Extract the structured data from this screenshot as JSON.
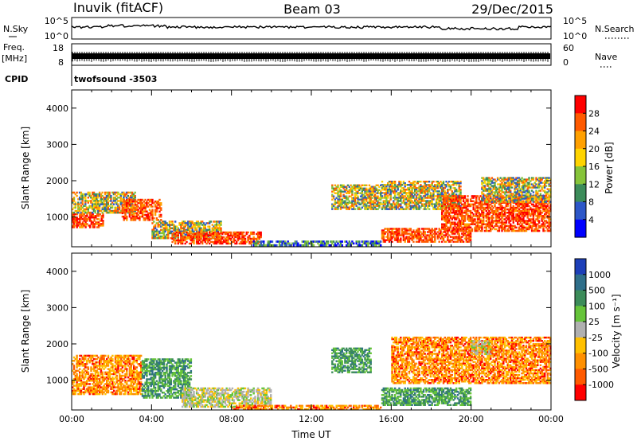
{
  "header": {
    "station": "Inuvik (fitACF)",
    "beam": "Beam 03",
    "date": "29/Dec/2015"
  },
  "top_panels": {
    "nsky_label": "N.Sky",
    "nsky_ticks": [
      "10^5",
      "10^0"
    ],
    "nsearch_label": "N.Search",
    "nsearch_ticks": [
      "10^5",
      "10^0"
    ],
    "freq_label": "Freq.",
    "freq_unit": "[MHz]",
    "freq_ticks": [
      "18",
      "8"
    ],
    "nave_label": "Nave",
    "nave_ticks": [
      "60",
      "0"
    ],
    "cpid_label": "CPID",
    "cpid_value": "twofsound  -3503"
  },
  "chart_data": [
    {
      "type": "heatmap",
      "name": "power",
      "ylabel": "Slant Range [km]",
      "yticks": [
        "1000",
        "2000",
        "3000",
        "4000"
      ],
      "ylim": [
        180,
        4500
      ],
      "xlim": [
        0,
        24
      ],
      "colorbar": {
        "label": "Power [dB]",
        "ticks": [
          "28",
          "24",
          "20",
          "16",
          "12",
          "8",
          "4"
        ],
        "colors": [
          "#ff0000",
          "#ff5a00",
          "#ffa000",
          "#ffd400",
          "#86c43a",
          "#3c8c5a",
          "#2d57c8",
          "#0000ff"
        ]
      },
      "echo_regions": [
        {
          "t0": 0.0,
          "t1": 1.6,
          "r0": 700,
          "r1": 1100,
          "level": "strong"
        },
        {
          "t0": 0.0,
          "t1": 3.2,
          "r0": 1100,
          "r1": 1700,
          "level": "medium"
        },
        {
          "t0": 2.5,
          "t1": 4.5,
          "r0": 900,
          "r1": 1500,
          "level": "strong"
        },
        {
          "t0": 4.0,
          "t1": 7.5,
          "r0": 400,
          "r1": 900,
          "level": "medium"
        },
        {
          "t0": 5.0,
          "t1": 9.5,
          "r0": 250,
          "r1": 600,
          "level": "strong"
        },
        {
          "t0": 9.0,
          "t1": 15.5,
          "r0": 200,
          "r1": 350,
          "level": "weak"
        },
        {
          "t0": 13.0,
          "t1": 15.5,
          "r0": 1200,
          "r1": 1900,
          "level": "medium"
        },
        {
          "t0": 15.5,
          "t1": 20.0,
          "r0": 300,
          "r1": 700,
          "level": "strong"
        },
        {
          "t0": 15.5,
          "t1": 19.5,
          "r0": 1200,
          "r1": 2000,
          "level": "medium"
        },
        {
          "t0": 18.5,
          "t1": 24.0,
          "r0": 600,
          "r1": 1600,
          "level": "strong"
        },
        {
          "t0": 20.5,
          "t1": 24.0,
          "r0": 1400,
          "r1": 2100,
          "level": "medium"
        }
      ]
    },
    {
      "type": "heatmap",
      "name": "velocity",
      "ylabel": "Slant Range [km]",
      "yticks": [
        "1000",
        "2000",
        "3000",
        "4000"
      ],
      "ylim": [
        180,
        4500
      ],
      "xlim": [
        0,
        24
      ],
      "xlabel": "Time UT",
      "xticks": [
        "00:00",
        "04:00",
        "08:00",
        "12:00",
        "16:00",
        "20:00",
        "00:00"
      ],
      "colorbar": {
        "label": "Velocity [m s⁻¹]",
        "ticks": [
          "1000",
          "500",
          "100",
          "25",
          "-25",
          "-100",
          "-500",
          "-1000"
        ],
        "colors": [
          "#1d3fb8",
          "#2f6f8a",
          "#3c8c5a",
          "#66c43a",
          "#b0b0b0",
          "#ffc000",
          "#ff9000",
          "#ff5a00",
          "#ff0000"
        ]
      },
      "echo_regions": [
        {
          "t0": 0.0,
          "t1": 3.5,
          "r0": 600,
          "r1": 1700,
          "level": "away"
        },
        {
          "t0": 3.5,
          "t1": 6.0,
          "r0": 500,
          "r1": 1600,
          "level": "toward"
        },
        {
          "t0": 5.5,
          "t1": 10.0,
          "r0": 250,
          "r1": 800,
          "level": "zero"
        },
        {
          "t0": 8.0,
          "t1": 15.5,
          "r0": 180,
          "r1": 320,
          "level": "away"
        },
        {
          "t0": 13.0,
          "t1": 15.0,
          "r0": 1200,
          "r1": 1900,
          "level": "toward"
        },
        {
          "t0": 15.5,
          "t1": 20.0,
          "r0": 300,
          "r1": 800,
          "level": "toward"
        },
        {
          "t0": 16.0,
          "t1": 24.0,
          "r0": 900,
          "r1": 2200,
          "level": "away"
        },
        {
          "t0": 20.0,
          "t1": 21.0,
          "r0": 1700,
          "r1": 2100,
          "level": "zero"
        }
      ]
    }
  ]
}
